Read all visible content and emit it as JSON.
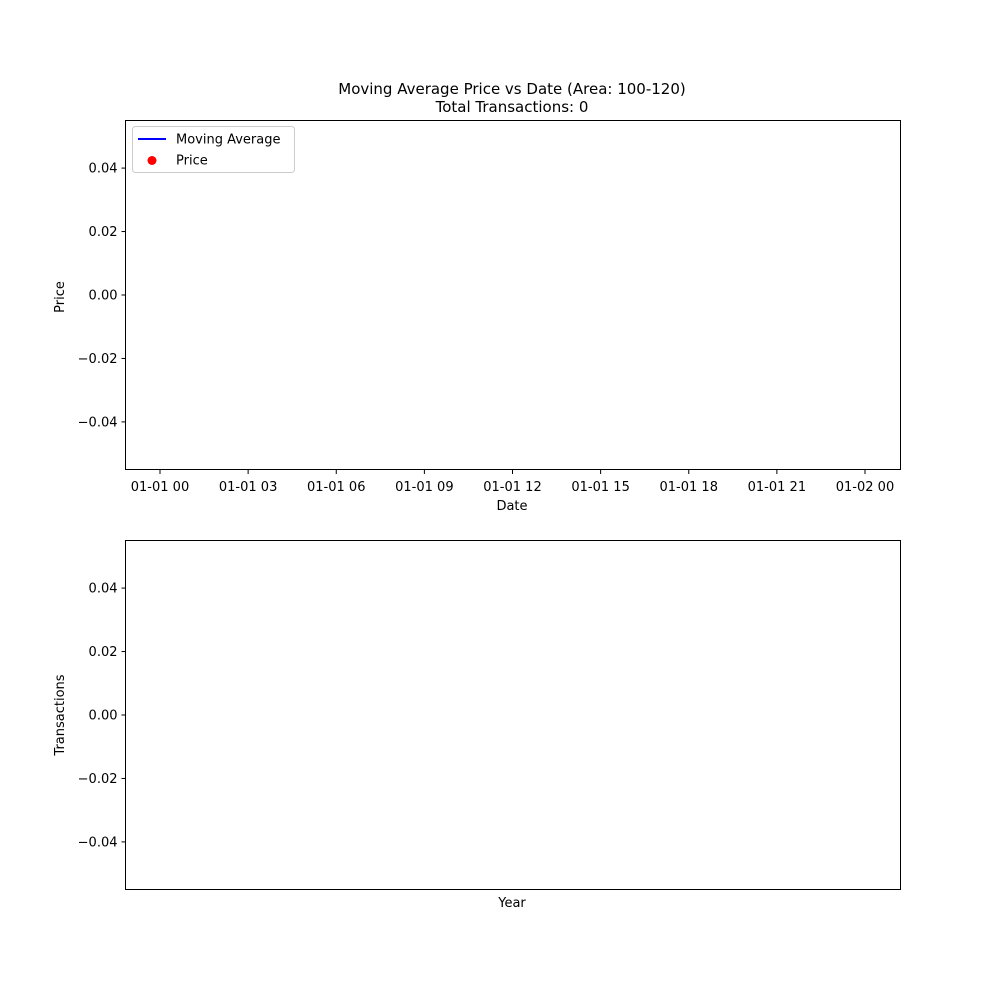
{
  "chart_data": [
    {
      "type": "line",
      "title": "Moving Average Price vs Date (Area: 100-120)",
      "subtitle": "Total Transactions: 0",
      "xlabel": "Date",
      "ylabel": "Price",
      "x_tick_labels": [
        "01-01 00",
        "01-01 03",
        "01-01 06",
        "01-01 09",
        "01-01 12",
        "01-01 15",
        "01-01 18",
        "01-01 21",
        "01-02 00"
      ],
      "y_tick_labels": [
        "0.04",
        "0.02",
        "0.00",
        "−0.02",
        "−0.04"
      ],
      "y_ticks": [
        0.04,
        0.02,
        0.0,
        -0.02,
        -0.04
      ],
      "ylim": [
        -0.055,
        0.055
      ],
      "legend_position": "upper-left",
      "series": [
        {
          "name": "Moving Average",
          "kind": "line",
          "color": "#0000ff",
          "x": [],
          "y": []
        },
        {
          "name": "Price",
          "kind": "scatter",
          "color": "#ff0000",
          "x": [],
          "y": []
        }
      ],
      "grid": false
    },
    {
      "type": "bar",
      "title": "",
      "xlabel": "Year",
      "ylabel": "Transactions",
      "x_tick_labels": [],
      "y_tick_labels": [
        "0.04",
        "0.02",
        "0.00",
        "−0.02",
        "−0.04"
      ],
      "y_ticks": [
        0.04,
        0.02,
        0.0,
        -0.02,
        -0.04
      ],
      "ylim": [
        -0.055,
        0.055
      ],
      "categories": [],
      "values": [],
      "grid": false
    }
  ]
}
